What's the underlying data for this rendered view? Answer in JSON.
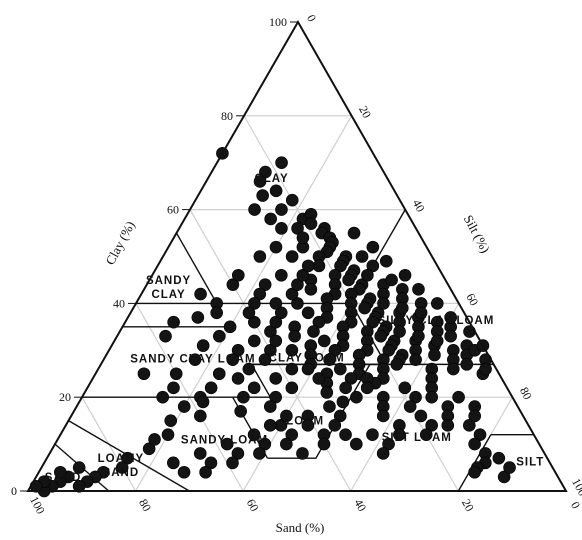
{
  "chart_data": {
    "type": "scatter",
    "subtype": "ternary",
    "axes": {
      "clay": {
        "label": "Clay (%)",
        "ticks": [
          "100",
          "80",
          "60",
          "40",
          "20",
          "0"
        ]
      },
      "silt": {
        "label": "Silt (%)",
        "ticks": [
          "0",
          "20",
          "40",
          "60",
          "80",
          "100"
        ]
      },
      "sand": {
        "label": "Sand (%)",
        "ticks": [
          "100",
          "80",
          "60",
          "40",
          "20",
          "0"
        ]
      }
    },
    "grid": true,
    "region_labels": [
      {
        "name": "CLAY",
        "clay": 66.7,
        "sand": 21.5
      },
      {
        "name": "SANDY\nCLAY",
        "clay": 43.5,
        "sand": 52.2
      },
      {
        "name": "SANDY CLAY LOAM",
        "clay": 28.2,
        "sand": 55.3
      },
      {
        "name": "CLAY LOAM",
        "clay": 28.5,
        "sand": 34
      },
      {
        "name": "SILTY CLAY LOAM",
        "clay": 36.5,
        "sand": 6
      },
      {
        "name": "LOAM",
        "clay": 15,
        "sand": 41
      },
      {
        "name": "SANDY LOAM",
        "clay": 11,
        "sand": 58
      },
      {
        "name": "SILT LOAM",
        "clay": 11.5,
        "sand": 22
      },
      {
        "name": "SILT",
        "clay": 6.3,
        "sand": 3.5
      },
      {
        "name": "LOAMY\nSAND",
        "clay": 5.5,
        "sand": 80
      },
      {
        "name": "SAND",
        "clay": 3,
        "sand": 92
      }
    ],
    "points_clay_sand": [
      [
        72,
        28
      ],
      [
        68,
        22
      ],
      [
        66,
        24
      ],
      [
        62,
        20
      ],
      [
        63,
        25
      ],
      [
        60,
        23
      ],
      [
        58,
        20
      ],
      [
        59,
        18
      ],
      [
        57,
        19
      ],
      [
        56,
        17
      ],
      [
        55,
        18
      ],
      [
        54,
        17
      ],
      [
        56,
        22
      ],
      [
        53,
        17
      ],
      [
        52,
        18
      ],
      [
        51,
        19
      ],
      [
        50,
        16
      ],
      [
        49,
        17
      ],
      [
        48,
        18
      ],
      [
        47,
        16
      ],
      [
        46,
        17
      ],
      [
        45,
        18
      ],
      [
        44,
        16
      ],
      [
        43,
        17
      ],
      [
        42,
        19
      ],
      [
        41,
        16
      ],
      [
        40,
        17
      ],
      [
        39,
        18
      ],
      [
        38,
        16
      ],
      [
        37,
        17
      ],
      [
        36,
        18
      ],
      [
        35,
        16
      ],
      [
        34,
        17
      ],
      [
        33,
        18
      ],
      [
        32,
        16
      ],
      [
        31,
        17
      ],
      [
        30,
        18
      ],
      [
        29,
        16
      ],
      [
        28,
        17
      ],
      [
        27,
        18
      ],
      [
        52,
        23
      ],
      [
        50,
        21
      ],
      [
        48,
        22
      ],
      [
        46,
        20
      ],
      [
        44,
        21
      ],
      [
        42,
        22
      ],
      [
        40,
        20
      ],
      [
        38,
        21
      ],
      [
        36,
        22
      ],
      [
        34,
        20
      ],
      [
        32,
        21
      ],
      [
        30,
        22
      ],
      [
        28,
        20
      ],
      [
        26,
        21
      ],
      [
        24,
        22
      ],
      [
        45,
        25
      ],
      [
        43,
        26
      ],
      [
        41,
        24
      ],
      [
        39,
        25
      ],
      [
        37,
        26
      ],
      [
        35,
        24
      ],
      [
        33,
        25
      ],
      [
        31,
        26
      ],
      [
        29,
        24
      ],
      [
        27,
        25
      ],
      [
        25,
        26
      ],
      [
        23,
        24
      ],
      [
        40,
        30
      ],
      [
        38,
        29
      ],
      [
        36,
        28
      ],
      [
        34,
        30
      ],
      [
        32,
        29
      ],
      [
        30,
        28
      ],
      [
        28,
        30
      ],
      [
        26,
        29
      ],
      [
        24,
        28
      ],
      [
        22,
        30
      ],
      [
        20,
        29
      ],
      [
        35,
        33
      ],
      [
        33,
        34
      ],
      [
        31,
        32
      ],
      [
        29,
        33
      ],
      [
        27,
        34
      ],
      [
        25,
        32
      ],
      [
        23,
        33
      ],
      [
        21,
        34
      ],
      [
        19,
        32
      ],
      [
        50,
        13
      ],
      [
        48,
        12
      ],
      [
        46,
        14
      ],
      [
        44,
        12
      ],
      [
        42,
        13
      ],
      [
        40,
        14
      ],
      [
        38,
        12
      ],
      [
        36,
        13
      ],
      [
        34,
        14
      ],
      [
        32,
        12
      ],
      [
        30,
        13
      ],
      [
        28,
        14
      ],
      [
        26,
        12
      ],
      [
        24,
        13
      ],
      [
        45,
        10
      ],
      [
        43,
        9
      ],
      [
        41,
        10
      ],
      [
        39,
        11
      ],
      [
        37,
        9
      ],
      [
        35,
        10
      ],
      [
        33,
        11
      ],
      [
        31,
        9
      ],
      [
        29,
        10
      ],
      [
        40,
        7
      ],
      [
        38,
        8
      ],
      [
        36,
        6
      ],
      [
        34,
        7
      ],
      [
        32,
        8
      ],
      [
        30,
        6
      ],
      [
        28,
        7
      ],
      [
        26,
        8
      ],
      [
        35,
        4
      ],
      [
        33,
        5
      ],
      [
        31,
        3
      ],
      [
        29,
        4
      ],
      [
        27,
        5
      ],
      [
        25,
        3
      ],
      [
        30,
        2
      ],
      [
        28,
        1
      ],
      [
        26,
        2
      ],
      [
        22,
        14
      ],
      [
        20,
        15
      ],
      [
        18,
        13
      ],
      [
        16,
        14
      ],
      [
        14,
        15
      ],
      [
        22,
        19
      ],
      [
        20,
        18
      ],
      [
        18,
        20
      ],
      [
        16,
        19
      ],
      [
        14,
        18
      ],
      [
        12,
        20
      ],
      [
        24,
        25
      ],
      [
        22,
        26
      ],
      [
        20,
        24
      ],
      [
        18,
        25
      ],
      [
        16,
        26
      ],
      [
        14,
        24
      ],
      [
        12,
        25
      ],
      [
        18,
        35
      ],
      [
        16,
        34
      ],
      [
        14,
        36
      ],
      [
        12,
        35
      ],
      [
        10,
        34
      ],
      [
        16,
        40
      ],
      [
        14,
        41
      ],
      [
        12,
        39
      ],
      [
        10,
        40
      ],
      [
        14,
        46
      ],
      [
        12,
        45
      ],
      [
        10,
        47
      ],
      [
        8,
        45
      ],
      [
        12,
        52
      ],
      [
        10,
        51
      ],
      [
        8,
        53
      ],
      [
        10,
        58
      ],
      [
        8,
        57
      ],
      [
        6,
        59
      ],
      [
        8,
        64
      ],
      [
        6,
        63
      ],
      [
        4,
        65
      ],
      [
        6,
        70
      ],
      [
        4,
        69
      ],
      [
        25,
        60
      ],
      [
        22,
        62
      ],
      [
        20,
        58
      ],
      [
        18,
        62
      ],
      [
        16,
        60
      ],
      [
        15,
        66
      ],
      [
        12,
        68
      ],
      [
        9,
        73
      ],
      [
        11,
        71
      ],
      [
        7,
        78
      ],
      [
        5,
        80
      ],
      [
        4,
        84
      ],
      [
        3,
        86
      ],
      [
        2,
        88
      ],
      [
        1,
        90
      ],
      [
        3,
        91
      ],
      [
        2,
        93
      ],
      [
        1,
        95
      ],
      [
        0,
        97
      ],
      [
        4,
        92
      ],
      [
        5,
        88
      ],
      [
        2,
        96
      ],
      [
        1,
        98
      ],
      [
        30,
        40
      ],
      [
        28,
        42
      ],
      [
        26,
        38
      ],
      [
        24,
        42
      ],
      [
        22,
        40
      ],
      [
        20,
        44
      ],
      [
        18,
        46
      ],
      [
        16,
        44
      ],
      [
        14,
        48
      ],
      [
        26,
        46
      ],
      [
        24,
        49
      ],
      [
        22,
        47
      ],
      [
        20,
        50
      ],
      [
        30,
        46
      ],
      [
        28,
        48
      ],
      [
        32,
        42
      ],
      [
        34,
        38
      ],
      [
        36,
        36
      ],
      [
        38,
        34
      ],
      [
        30,
        36
      ],
      [
        36,
        40
      ],
      [
        40,
        34
      ],
      [
        42,
        30
      ],
      [
        44,
        28
      ],
      [
        46,
        26
      ],
      [
        48,
        24
      ],
      [
        50,
        26
      ],
      [
        52,
        28
      ],
      [
        54,
        22
      ],
      [
        46,
        30
      ],
      [
        44,
        34
      ],
      [
        42,
        36
      ],
      [
        40,
        38
      ],
      [
        38,
        40
      ],
      [
        35,
        45
      ],
      [
        33,
        48
      ],
      [
        31,
        52
      ],
      [
        28,
        55
      ],
      [
        25,
        52
      ],
      [
        22,
        55
      ],
      [
        19,
        58
      ],
      [
        17,
        52
      ],
      [
        55,
        12
      ],
      [
        52,
        10
      ],
      [
        49,
        9
      ],
      [
        46,
        7
      ],
      [
        43,
        6
      ],
      [
        40,
        4
      ],
      [
        37,
        3
      ],
      [
        34,
        1
      ],
      [
        31,
        0
      ],
      [
        20,
        10
      ],
      [
        18,
        8
      ],
      [
        16,
        9
      ],
      [
        14,
        11
      ],
      [
        12,
        10
      ],
      [
        10,
        12
      ],
      [
        8,
        11
      ],
      [
        6,
        12
      ],
      [
        5,
        14
      ],
      [
        4,
        15
      ],
      [
        3,
        10
      ],
      [
        5,
        8
      ],
      [
        7,
        9
      ],
      [
        10,
        28
      ],
      [
        12,
        30
      ],
      [
        8,
        30
      ],
      [
        24,
        34
      ],
      [
        26,
        35
      ],
      [
        40,
        45
      ],
      [
        37,
        50
      ],
      [
        44,
        40
      ],
      [
        46,
        38
      ],
      [
        60,
        28
      ],
      [
        58,
        26
      ],
      [
        64,
        22
      ],
      [
        70,
        18
      ],
      [
        50,
        32
      ],
      [
        56,
        25
      ],
      [
        36,
        55
      ],
      [
        33,
        58
      ],
      [
        20,
        65
      ],
      [
        25,
        66
      ],
      [
        42,
        47
      ],
      [
        38,
        46
      ],
      [
        32,
        38
      ]
    ]
  }
}
